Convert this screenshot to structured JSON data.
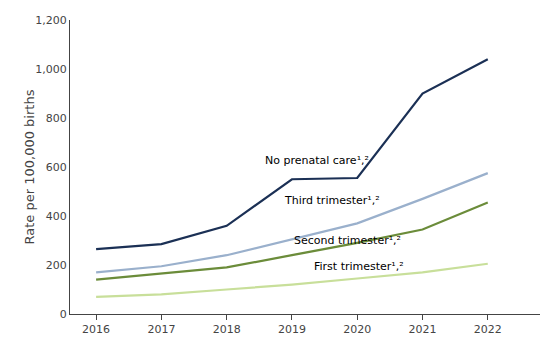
{
  "chart_data": {
    "type": "line",
    "x": [
      2016,
      2017,
      2018,
      2019,
      2020,
      2021,
      2022
    ],
    "series": [
      {
        "color": "#1b3055",
        "values": [
          265,
          285,
          360,
          550,
          555,
          900,
          1040
        ]
      },
      {
        "color": "#9ab0cc",
        "values": [
          170,
          195,
          240,
          305,
          370,
          470,
          575
        ]
      },
      {
        "color": "#6b8c3a",
        "values": [
          140,
          165,
          190,
          240,
          290,
          345,
          455
        ]
      },
      {
        "color": "#c8df9a",
        "values": [
          70,
          80,
          100,
          120,
          145,
          170,
          205
        ]
      }
    ],
    "ylabel": "Rate per 100,000 births",
    "xlim": [
      2015.6,
      2022.8
    ],
    "xticks": [
      2016,
      2017,
      2018,
      2019,
      2020,
      2021,
      2022
    ],
    "ylim": [
      0,
      1200
    ],
    "yticks": [
      0,
      200,
      400,
      600,
      800,
      {
        "value": 1000,
        "label": "1,000"
      },
      {
        "value": 1200,
        "label": "1,200"
      }
    ],
    "annotations": [
      {
        "text": "No prenatal care¹,²",
        "x": 2018.55,
        "y": 590
      },
      {
        "text": "Third trimester¹,²",
        "x": 2018.85,
        "y": 428
      },
      {
        "text": "Second trimester¹,²",
        "x": 2019.0,
        "y": 265
      },
      {
        "text": "First trimester¹,²",
        "x": 2019.3,
        "y": 160
      }
    ],
    "grid": false
  }
}
